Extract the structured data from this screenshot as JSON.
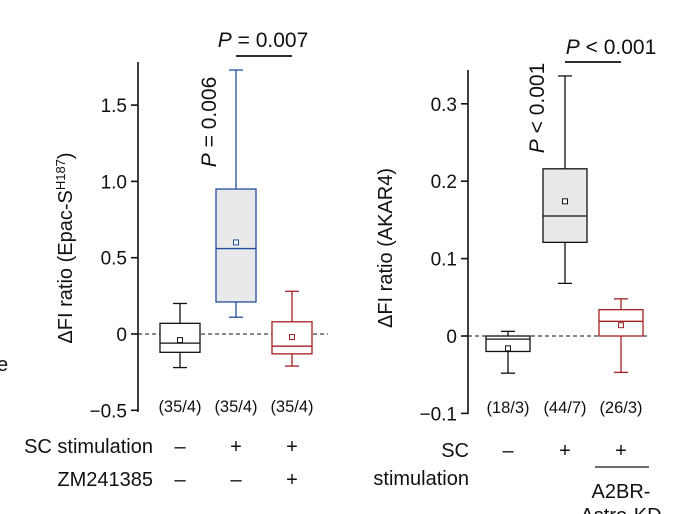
{
  "chart_data": [
    {
      "type": "box",
      "ylabel": "ΔFI ratio (Epac-S",
      "ylabel_sup": "H187",
      "ylabel_tail": ")",
      "ylim": [
        -0.5,
        1.7
      ],
      "yticks": [
        -0.5,
        0,
        0.5,
        1.0,
        1.5
      ],
      "ytick_labels": [
        "−0.5",
        "0",
        "0.5",
        "1.0",
        "1.5"
      ],
      "zero_line": "dashed",
      "groups": [
        {
          "n_label": "(35/4)",
          "color": "#111111",
          "fill": "#ffffff",
          "whisker_low": -0.22,
          "q1": -0.12,
          "median": -0.06,
          "q3": 0.07,
          "whisker_high": 0.2,
          "mean": -0.04
        },
        {
          "n_label": "(35/4)",
          "color": "#1f4f9f",
          "fill": "#e9e9e9",
          "whisker_low": 0.11,
          "q1": 0.21,
          "median": 0.56,
          "q3": 0.95,
          "whisker_high": 1.73,
          "mean": 0.6
        },
        {
          "n_label": "(35/4)",
          "color": "#a32020",
          "fill": "#ffffff",
          "whisker_low": -0.21,
          "q1": -0.13,
          "median": -0.08,
          "q3": 0.08,
          "whisker_high": 0.28,
          "mean": -0.02
        }
      ],
      "condition_rows": [
        {
          "label": "SC stimulation",
          "values": [
            "–",
            "+",
            "+"
          ]
        },
        {
          "label": "ZM241385",
          "values": [
            "–",
            "–",
            "+"
          ]
        }
      ],
      "annotations": [
        {
          "text_italic": "P",
          "text_rest": " = 0.006",
          "orientation": "vertical",
          "group": 2
        },
        {
          "text_italic": "P",
          "text_rest": " = 0.007",
          "bracket": [
            2,
            3
          ]
        }
      ]
    },
    {
      "type": "box",
      "ylabel": "ΔFI ratio (AKAR4)",
      "ylim": [
        -0.1,
        0.34
      ],
      "yticks": [
        -0.1,
        0,
        0.1,
        0.2,
        0.3
      ],
      "ytick_labels": [
        "−0.1",
        "0",
        "0.1",
        "0.2",
        "0.3"
      ],
      "zero_line": "dashed",
      "groups": [
        {
          "n_label": "(18/3)",
          "color": "#111111",
          "fill": "#ffffff",
          "whisker_low": -0.048,
          "q1": -0.02,
          "median": -0.004,
          "q3": 0.0,
          "whisker_high": 0.006,
          "mean": -0.016
        },
        {
          "n_label": "(44/7)",
          "color": "#111111",
          "fill": "#e9e9e9",
          "whisker_low": 0.068,
          "q1": 0.121,
          "median": 0.155,
          "q3": 0.216,
          "whisker_high": 0.336,
          "mean": 0.174
        },
        {
          "n_label": "(26/3)",
          "color": "#a32020",
          "fill": "#ffffff",
          "whisker_low": -0.047,
          "q1": 0.0,
          "median": 0.019,
          "q3": 0.034,
          "whisker_high": 0.048,
          "mean": 0.014
        }
      ],
      "condition_rows": [
        {
          "label": "SC",
          "label2": "stimulation",
          "values": [
            "–",
            "+",
            "+"
          ]
        }
      ],
      "group_label": "A2BR-",
      "group_label2": "Astro-KD",
      "annotations": [
        {
          "text_italic": "P",
          "text_rest": " < 0.001",
          "orientation": "vertical",
          "group": 2
        },
        {
          "text_italic": "P",
          "text_rest": " < 0.001",
          "bracket": [
            2,
            3
          ]
        }
      ]
    }
  ],
  "cropped_left_text": "e"
}
